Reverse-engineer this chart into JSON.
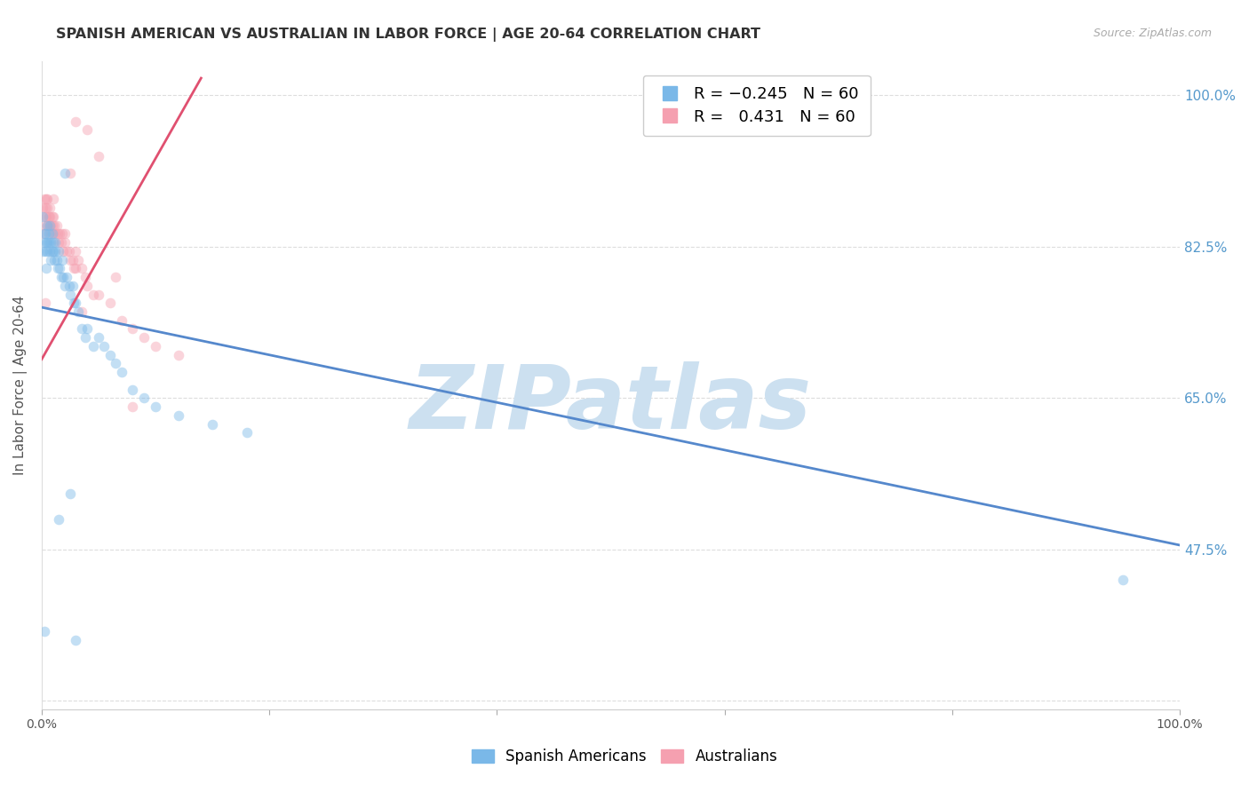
{
  "title": "SPANISH AMERICAN VS AUSTRALIAN IN LABOR FORCE | AGE 20-64 CORRELATION CHART",
  "source": "Source: ZipAtlas.com",
  "ylabel": "In Labor Force | Age 20-64",
  "ytick_positions": [
    0.3,
    0.475,
    0.65,
    0.825,
    1.0
  ],
  "ytick_labels": [
    "",
    "47.5%",
    "65.0%",
    "82.5%",
    "100.0%"
  ],
  "xlim": [
    0.0,
    1.0
  ],
  "ylim": [
    0.29,
    1.04
  ],
  "series_colors": [
    "#7ab8e8",
    "#f5a0b0"
  ],
  "watermark": "ZIPatlas",
  "watermark_color": "#cce0f0",
  "blue_line_x0": 0.0,
  "blue_line_x1": 1.0,
  "blue_line_y0": 0.755,
  "blue_line_y1": 0.48,
  "pink_line_x0": 0.0,
  "pink_line_x1": 0.14,
  "pink_line_y0": 0.695,
  "pink_line_y1": 1.02,
  "grid_color": "#dddddd",
  "title_fontsize": 11.5,
  "axis_label_fontsize": 11,
  "tick_fontsize": 10,
  "legend_fontsize": 13,
  "marker_size": 70,
  "marker_alpha": 0.45,
  "background_color": "#ffffff",
  "right_axis_color": "#5599cc",
  "blue_scatter_x": [
    0.001,
    0.001,
    0.002,
    0.002,
    0.003,
    0.003,
    0.004,
    0.004,
    0.005,
    0.005,
    0.005,
    0.006,
    0.006,
    0.007,
    0.007,
    0.008,
    0.008,
    0.009,
    0.009,
    0.01,
    0.01,
    0.011,
    0.012,
    0.012,
    0.013,
    0.014,
    0.015,
    0.016,
    0.017,
    0.018,
    0.019,
    0.02,
    0.022,
    0.024,
    0.025,
    0.027,
    0.028,
    0.03,
    0.032,
    0.035,
    0.038,
    0.04,
    0.045,
    0.05,
    0.055,
    0.06,
    0.065,
    0.07,
    0.08,
    0.09,
    0.1,
    0.12,
    0.15,
    0.18,
    0.002,
    0.015,
    0.025,
    0.03,
    0.95,
    0.02
  ],
  "blue_scatter_y": [
    0.82,
    0.86,
    0.83,
    0.84,
    0.84,
    0.82,
    0.8,
    0.83,
    0.85,
    0.83,
    0.82,
    0.84,
    0.83,
    0.85,
    0.82,
    0.81,
    0.83,
    0.82,
    0.84,
    0.83,
    0.82,
    0.81,
    0.83,
    0.82,
    0.81,
    0.8,
    0.82,
    0.8,
    0.79,
    0.81,
    0.79,
    0.78,
    0.79,
    0.78,
    0.77,
    0.78,
    0.76,
    0.76,
    0.75,
    0.73,
    0.72,
    0.73,
    0.71,
    0.72,
    0.71,
    0.7,
    0.69,
    0.68,
    0.66,
    0.65,
    0.64,
    0.63,
    0.62,
    0.61,
    0.38,
    0.51,
    0.54,
    0.37,
    0.44,
    0.91
  ],
  "pink_scatter_x": [
    0.001,
    0.001,
    0.002,
    0.002,
    0.003,
    0.003,
    0.004,
    0.004,
    0.005,
    0.005,
    0.005,
    0.006,
    0.006,
    0.007,
    0.007,
    0.008,
    0.008,
    0.009,
    0.009,
    0.01,
    0.01,
    0.011,
    0.012,
    0.013,
    0.014,
    0.015,
    0.016,
    0.017,
    0.018,
    0.019,
    0.02,
    0.022,
    0.024,
    0.025,
    0.027,
    0.028,
    0.03,
    0.03,
    0.032,
    0.035,
    0.038,
    0.04,
    0.045,
    0.05,
    0.06,
    0.07,
    0.08,
    0.09,
    0.1,
    0.12,
    0.003,
    0.01,
    0.02,
    0.025,
    0.03,
    0.035,
    0.04,
    0.05,
    0.065,
    0.08
  ],
  "pink_scatter_y": [
    0.84,
    0.87,
    0.85,
    0.88,
    0.86,
    0.87,
    0.88,
    0.86,
    0.85,
    0.87,
    0.88,
    0.86,
    0.85,
    0.87,
    0.86,
    0.85,
    0.84,
    0.86,
    0.85,
    0.84,
    0.86,
    0.85,
    0.84,
    0.85,
    0.84,
    0.83,
    0.84,
    0.83,
    0.84,
    0.82,
    0.83,
    0.82,
    0.82,
    0.81,
    0.81,
    0.8,
    0.8,
    0.82,
    0.81,
    0.8,
    0.79,
    0.78,
    0.77,
    0.77,
    0.76,
    0.74,
    0.73,
    0.72,
    0.71,
    0.7,
    0.76,
    0.88,
    0.84,
    0.91,
    0.97,
    0.75,
    0.96,
    0.93,
    0.79,
    0.64
  ]
}
